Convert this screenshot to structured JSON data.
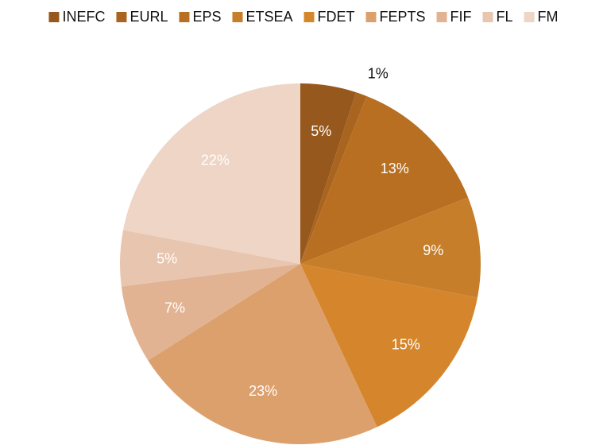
{
  "chart_data": {
    "type": "pie",
    "categories": [
      "INEFC",
      "EURL",
      "EPS",
      "ETSEA",
      "FDET",
      "FEPTS",
      "FIF",
      "FL",
      "FM"
    ],
    "values": [
      5,
      1,
      13,
      9,
      15,
      23,
      7,
      5,
      22
    ],
    "value_labels": [
      "5%",
      "1%",
      "13%",
      "9%",
      "15%",
      "23%",
      "7%",
      "5%",
      "22%"
    ],
    "colors": [
      "#96581d",
      "#a9651f",
      "#b86f22",
      "#c67e2a",
      "#d5862c",
      "#dca06d",
      "#e2b392",
      "#e8c5ae",
      "#eed5c6"
    ],
    "legend": "top"
  }
}
